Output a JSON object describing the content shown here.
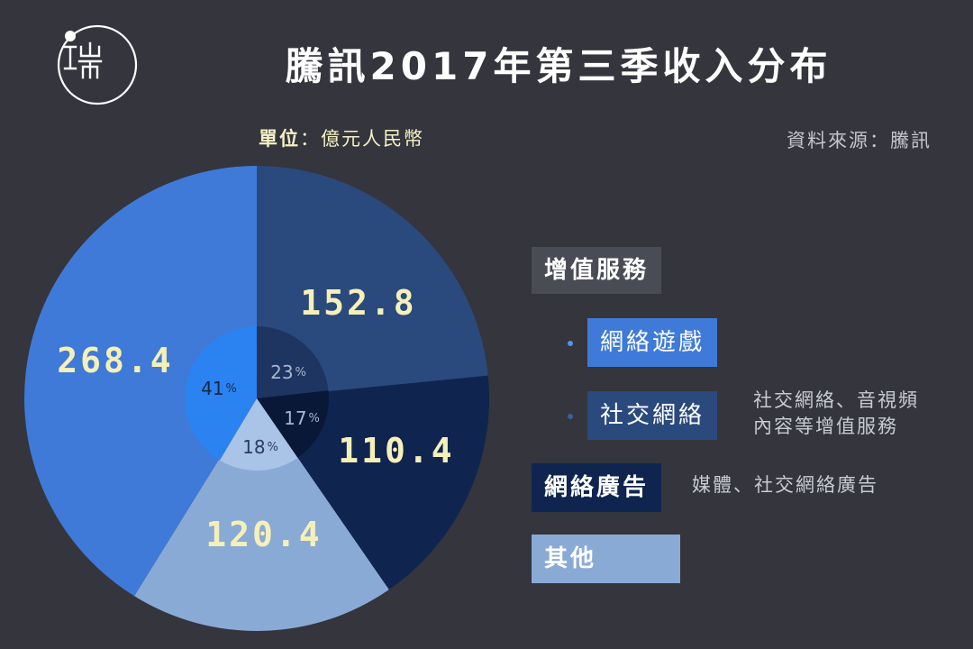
{
  "title": "騰訊2017年第三季收入分布",
  "unit_label": "單位",
  "unit_value": "：億元人民幣",
  "source": "資料來源：騰訊",
  "logo_glyphs": "端",
  "legend": {
    "addon": "增值服務",
    "games": "網絡遊戲",
    "social": "社交網絡",
    "social_note_line1": "社交網絡、音視頻",
    "social_note_line2": "內容等增值服務",
    "ads": "網絡廣告",
    "ads_note": "媒體、社交網絡廣告",
    "other": "其他"
  },
  "chart_data": {
    "type": "pie",
    "title": "騰訊2017年第三季收入分布",
    "unit": "億元人民幣",
    "outer_ring": [
      {
        "name": "社交網絡",
        "value": 152.8,
        "value_label": "152.8",
        "color": "#2a4a7d"
      },
      {
        "name": "網絡廣告",
        "value": 110.4,
        "value_label": "110.4",
        "color": "#0f2550"
      },
      {
        "name": "其他",
        "value": 120.4,
        "value_label": "120.4",
        "color": "#8aaad6"
      },
      {
        "name": "網絡遊戲",
        "value": 268.4,
        "value_label": "268.4",
        "color": "#3f7ad8"
      }
    ],
    "inner_ring": [
      {
        "name": "社交網絡",
        "percent": 23,
        "percent_label": "23",
        "color": "#1e3461"
      },
      {
        "name": "網絡廣告",
        "percent": 17,
        "percent_label": "17",
        "color": "#0a1838"
      },
      {
        "name": "其他",
        "percent": 18,
        "percent_label": "18",
        "color": "#aac4e8"
      },
      {
        "name": "網絡遊戲",
        "percent": 41,
        "percent_label": "41",
        "color": "#2b83f2"
      }
    ],
    "percent_sign": "%",
    "value_label_color": "#f5f0b8"
  }
}
